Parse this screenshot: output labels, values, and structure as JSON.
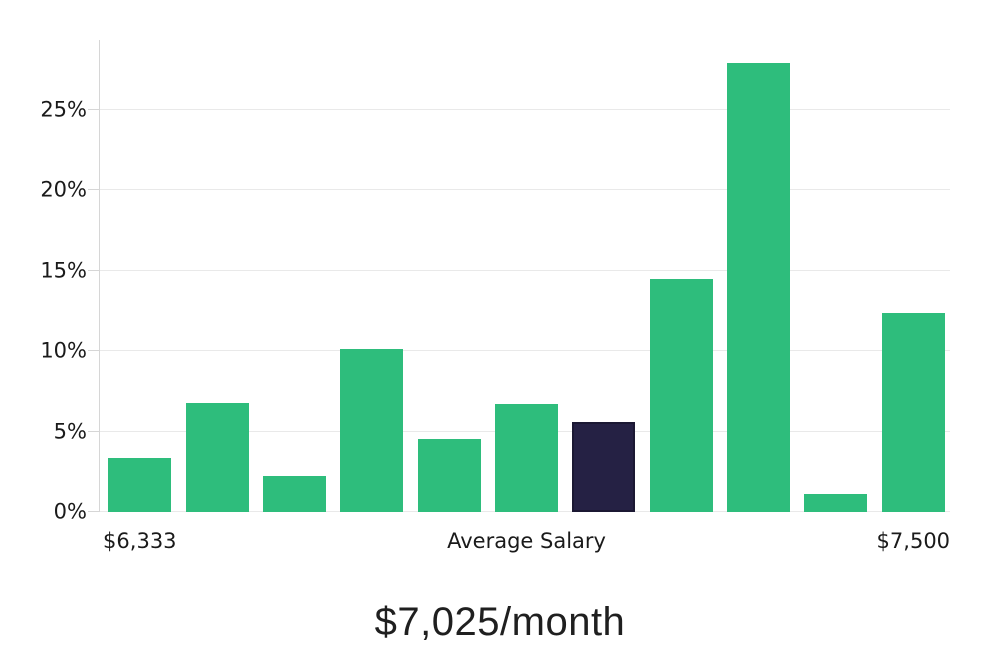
{
  "page": {
    "background": "#ffffff"
  },
  "chart_data": {
    "type": "bar",
    "title": "$7,025/month",
    "xlabel": "",
    "ylabel": "",
    "ylim": [
      0,
      29.35
    ],
    "grid": true,
    "y_ticks": [
      {
        "value": 0,
        "label": "0%"
      },
      {
        "value": 5,
        "label": "5%"
      },
      {
        "value": 10,
        "label": "10%"
      },
      {
        "value": 15,
        "label": "15%"
      },
      {
        "value": 20,
        "label": "20%"
      },
      {
        "value": 25,
        "label": "25%"
      }
    ],
    "bars": [
      {
        "value": 3.35,
        "highlighted": false
      },
      {
        "value": 6.75,
        "highlighted": false
      },
      {
        "value": 2.25,
        "highlighted": false
      },
      {
        "value": 10.15,
        "highlighted": false
      },
      {
        "value": 4.55,
        "highlighted": false
      },
      {
        "value": 6.7,
        "highlighted": false
      },
      {
        "value": 5.6,
        "highlighted": true
      },
      {
        "value": 14.5,
        "highlighted": false
      },
      {
        "value": 27.9,
        "highlighted": false
      },
      {
        "value": 1.15,
        "highlighted": false
      },
      {
        "value": 12.35,
        "highlighted": false
      }
    ],
    "x_axis_labels": [
      {
        "text": "$6,333",
        "bar_index": 0
      },
      {
        "text": "Average Salary",
        "bar_index": 5
      },
      {
        "text": "$7,500",
        "bar_index": 10
      }
    ],
    "colors": {
      "bar": "#2ebd7c",
      "highlight_bar": "#252144",
      "highlight_border": "#1b1833",
      "gridline": "#e9e9e9",
      "axis": "#d6d6d6",
      "label_text": "#1a1a1a",
      "title_text": "#1f1f1f"
    }
  }
}
